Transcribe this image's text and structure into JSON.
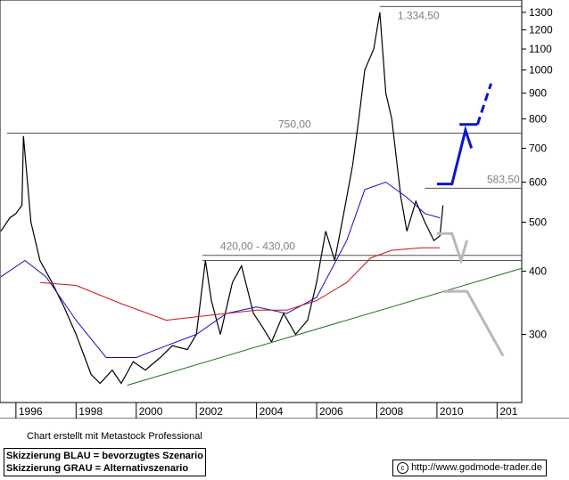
{
  "chart_data": {
    "type": "line",
    "log_scale": true,
    "xlim": [
      1995.47,
      2012.82
    ],
    "xticks": [
      1996,
      1998,
      2000,
      2002,
      2004,
      2006,
      2008,
      2010,
      {
        "value": 2012,
        "label": "201"
      }
    ],
    "ylim": [
      220,
      1375
    ],
    "yticks": [
      300,
      400,
      500,
      600,
      700,
      800,
      900,
      1000,
      1100,
      1200,
      1300
    ],
    "series": [
      {
        "color": "#000000",
        "width": 1.2,
        "x": [
          1995.5,
          1995.8,
          1996.0,
          1996.2,
          1996.25,
          1996.5,
          1996.8,
          1997.2,
          1997.6,
          1998.0,
          1998.5,
          1998.8,
          1999.2,
          1999.5,
          1999.9,
          2000.3,
          2000.8,
          2001.2,
          2001.7,
          2002.0,
          2002.3,
          2002.5,
          2002.8,
          2003.2,
          2003.5,
          2003.9,
          2004.2,
          2004.5,
          2004.9,
          2005.3,
          2005.7,
          2006.0,
          2006.3,
          2006.6,
          2006.9,
          2007.2,
          2007.4,
          2007.6,
          2007.9,
          2008.1,
          2008.3,
          2008.5,
          2008.8,
          2009.0,
          2009.3,
          2009.6,
          2009.9,
          2010.1,
          2010.2
        ],
        "values": [
          480,
          510,
          520,
          540,
          740,
          500,
          420,
          380,
          340,
          300,
          250,
          240,
          255,
          240,
          265,
          255,
          270,
          285,
          280,
          300,
          420,
          350,
          300,
          380,
          410,
          330,
          310,
          290,
          330,
          300,
          320,
          380,
          480,
          420,
          520,
          650,
          800,
          1000,
          1100,
          1300,
          900,
          800,
          560,
          480,
          550,
          500,
          460,
          470,
          540
        ]
      },
      {
        "color": "#1010c0",
        "width": 1,
        "x": [
          1995.5,
          1996.3,
          1997.0,
          1998.0,
          1999.0,
          2000.0,
          2001.0,
          2002.0,
          2003.0,
          2004.0,
          2005.0,
          2006.0,
          2007.0,
          2007.6,
          2008.3,
          2009.0,
          2009.6,
          2010.1
        ],
        "values": [
          390,
          420,
          390,
          320,
          270,
          270,
          285,
          300,
          330,
          340,
          330,
          355,
          460,
          580,
          600,
          560,
          520,
          510
        ]
      },
      {
        "color": "#d01010",
        "width": 1,
        "x": [
          1996.8,
          1998.0,
          1999.5,
          2001.0,
          2002.0,
          2003.0,
          2004.0,
          2005.0,
          2006.0,
          2007.0,
          2007.8,
          2008.5,
          2009.5,
          2010.1
        ],
        "values": [
          380,
          375,
          345,
          320,
          325,
          330,
          335,
          335,
          350,
          380,
          425,
          440,
          445,
          445
        ]
      },
      {
        "color": "#207020",
        "width": 1,
        "x": [
          1999.7,
          2012.8
        ],
        "values": [
          238,
          405
        ]
      },
      {
        "color": "#0a14d0",
        "width": 3,
        "x": [
          2010.0,
          2010.5,
          2010.95,
          2011.15
        ],
        "values": [
          595,
          595,
          760,
          700
        ]
      },
      {
        "color": "#0a14d0",
        "width": 3,
        "x": [
          2010.75,
          2011.35
        ],
        "values": [
          780,
          780
        ]
      },
      {
        "color": "#0a14d0",
        "width": 3,
        "dashed": true,
        "x": [
          2011.35,
          2011.8
        ],
        "values": [
          780,
          940
        ]
      },
      {
        "color": "#b8b8b8",
        "width": 3,
        "x": [
          2010.0,
          2010.5,
          2010.8,
          2011.0
        ],
        "values": [
          475,
          475,
          420,
          460
        ]
      },
      {
        "color": "#b8b8b8",
        "width": 3,
        "x": [
          2010.2,
          2011.0,
          2012.2
        ],
        "values": [
          365,
          365,
          272
        ]
      }
    ],
    "levels": [
      {
        "values": [
          1334.5
        ],
        "label": "1.334,50",
        "x_start": 2008.1
      },
      {
        "values": [
          750
        ],
        "label": "750,00",
        "x_start": 1995.7
      },
      {
        "values": [
          583.5
        ],
        "label": "583,50",
        "x_start": 2009.6
      },
      {
        "values": [
          420,
          430
        ],
        "label": "420,00 - 430,00",
        "x_start": 2002.2
      }
    ]
  },
  "footer": {
    "credit": "Chart erstellt mit Metastock Professional",
    "legend_blue": "Skizzierung BLAU = bevorzugtes Szenario",
    "legend_grey": "Skizzierung GRAU = Alternativszenario",
    "url": "http://www.godmode-trader.de"
  }
}
